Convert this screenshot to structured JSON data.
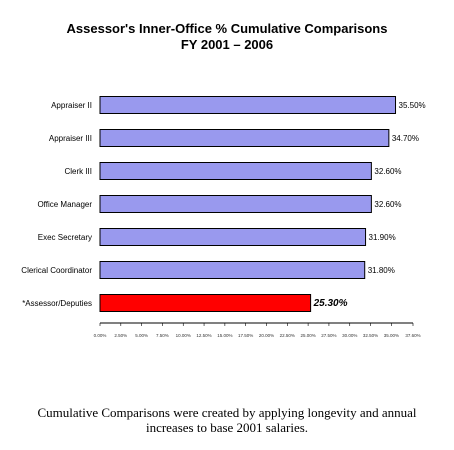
{
  "chart_data": {
    "type": "bar",
    "orientation": "horizontal",
    "title": "Assessor's Inner-Office % Cumulative Comparisons",
    "subtitle": "FY 2001 – 2006",
    "categories": [
      "Appraiser II",
      "Appraiser III",
      "Clerk III",
      "Office Manager",
      "Exec Secretary",
      "Clerical Coordinator",
      "*Assessor/Deputies"
    ],
    "values": [
      35.5,
      34.7,
      32.6,
      32.6,
      31.9,
      31.8,
      25.3
    ],
    "value_labels": [
      "35.50%",
      "34.70%",
      "32.60%",
      "32.60%",
      "31.90%",
      "31.80%",
      "25.30%"
    ],
    "bar_colors": [
      "#9999ee",
      "#9999ee",
      "#9999ee",
      "#9999ee",
      "#9999ee",
      "#9999ee",
      "#ff0000"
    ],
    "highlight_index": 6,
    "xlim": [
      0,
      37.6
    ],
    "xticks": [
      "0.00%",
      "2.50%",
      "5.00%",
      "7.50%",
      "10.00%",
      "12.50%",
      "15.00%",
      "17.50%",
      "20.00%",
      "22.50%",
      "25.00%",
      "27.50%",
      "30.00%",
      "32.50%",
      "35.00%",
      "37.60%"
    ],
    "xtick_values": [
      0,
      2.5,
      5,
      7.5,
      10,
      12.5,
      15,
      17.5,
      20,
      22.5,
      25,
      27.5,
      30,
      32.5,
      35,
      37.6
    ],
    "xlabel": "",
    "ylabel": "",
    "grid": false,
    "legend": "none"
  },
  "caption": "Cumulative Comparisons were created by applying longevity and annual increases to base 2001 salaries."
}
